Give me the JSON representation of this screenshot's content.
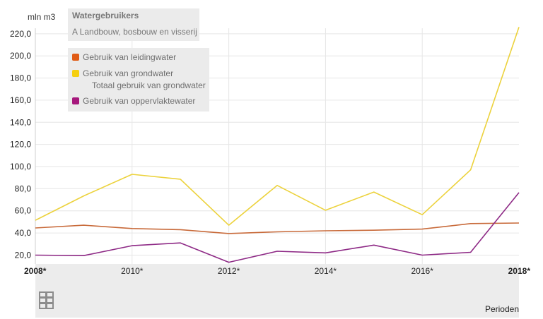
{
  "chart_data": {
    "type": "line",
    "unit_label": "mln m3",
    "filter_title": "Watergebruikers",
    "filter_value": "A Landbouw, bosbouw en visserij",
    "x_label": "Perioden",
    "x": [
      2008,
      2009,
      2010,
      2011,
      2012,
      2013,
      2014,
      2015,
      2016,
      2017,
      2018
    ],
    "x_tick_labels": [
      {
        "x": 2008,
        "label": "2008*",
        "bold": true
      },
      {
        "x": 2010,
        "label": "2010*",
        "bold": false
      },
      {
        "x": 2012,
        "label": "2012*",
        "bold": false
      },
      {
        "x": 2014,
        "label": "2014*",
        "bold": false
      },
      {
        "x": 2016,
        "label": "2016*",
        "bold": false
      },
      {
        "x": 2018,
        "label": "2018*",
        "bold": true
      }
    ],
    "y_ticks": [
      20,
      40,
      60,
      80,
      100,
      120,
      140,
      160,
      180,
      200,
      220
    ],
    "y_tick_labels": [
      "20,0",
      "40,0",
      "60,0",
      "80,0",
      "100,0",
      "120,0",
      "140,0",
      "160,0",
      "180,0",
      "200,0",
      "220,0"
    ],
    "ylim": [
      12,
      225
    ],
    "grid": true,
    "legend_position": "top-left",
    "legend": [
      {
        "label": "Gebruik van leidingwater",
        "color": "#e05a14",
        "swatch": true
      },
      {
        "label": "Gebruik van grondwater",
        "color": "#f5cf0f",
        "swatch": true
      },
      {
        "label": "Totaal gebruik van grondwater",
        "color": "",
        "swatch": false
      },
      {
        "label": "Gebruik van oppervlaktewater",
        "color": "#a6187c",
        "swatch": true
      }
    ],
    "series": [
      {
        "name": "Gebruik van leidingwater",
        "color": "#c86a3a",
        "values": [
          44.5,
          47,
          44,
          43,
          39.5,
          41,
          42,
          42.5,
          43.5,
          48.5,
          49
        ]
      },
      {
        "name": "Gebruik van grondwater",
        "color": "#ecd23c",
        "values": [
          51.5,
          73.5,
          93,
          88.5,
          47,
          83,
          60.5,
          77,
          56.5,
          97,
          226
        ]
      },
      {
        "name": "Gebruik van oppervlaktewater",
        "color": "#8e2a86",
        "values": [
          20,
          19.5,
          28.5,
          31,
          13.5,
          23.5,
          22,
          29,
          20,
          22.5,
          76.5
        ]
      }
    ]
  }
}
